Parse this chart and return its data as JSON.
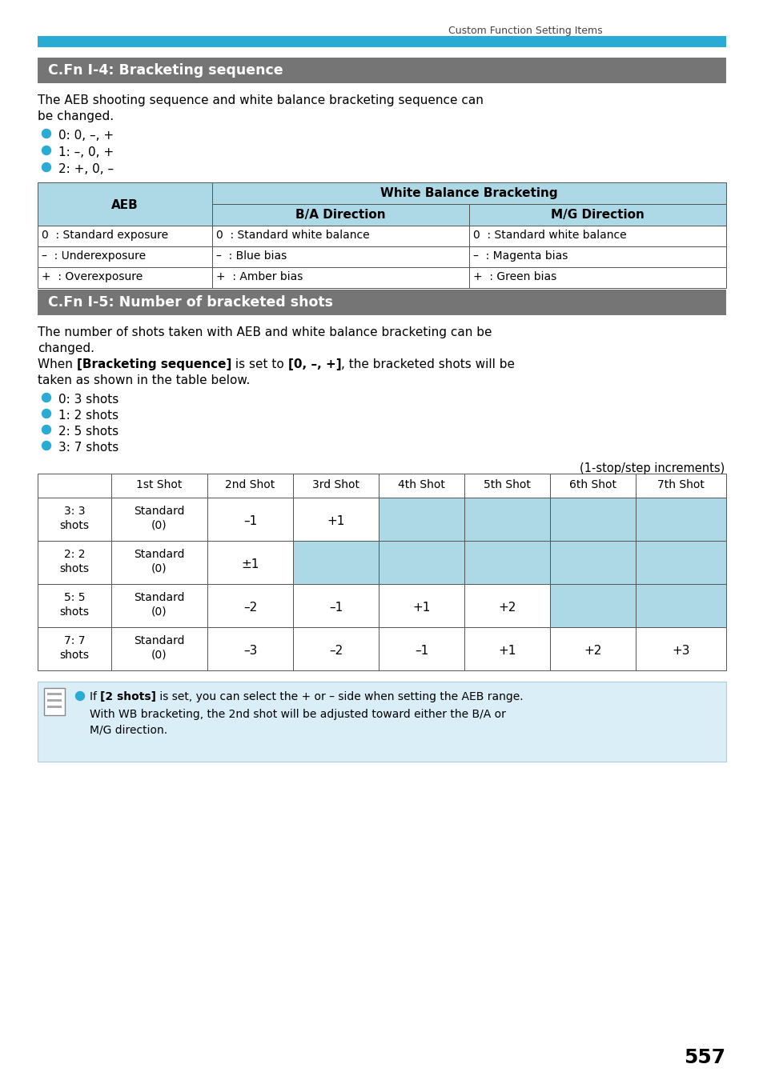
{
  "page_header": "Custom Function Setting Items",
  "cyan_bar_color": "#29ABD4",
  "section1_title": "C.Fn I-4: Bracketing sequence",
  "section1_title_bg": "#757575",
  "section1_title_color": "#FFFFFF",
  "section1_body_line1": "The AEB shooting sequence and white balance bracketing sequence can",
  "section1_body_line2": "be changed.",
  "section1_bullets": [
    "0: 0, –, +",
    "1: –, 0, +",
    "2: +, 0, –"
  ],
  "bullet_color": "#29ABD4",
  "table1_header_bg": "#ADD8E6",
  "table2_header_bg": "#ADD8E6",
  "table2_cell_bg": "#ADD8E6",
  "section2_title": "C.Fn I-5: Number of bracketed shots",
  "section2_title_bg": "#757575",
  "section2_title_color": "#FFFFFF",
  "section2_body_line1": "The number of shots taken with AEB and white balance bracketing can be",
  "section2_body_line2": "changed.",
  "section2_body_line3_normal1": "When ",
  "section2_body_line3_bold1": "[Bracketing sequence]",
  "section2_body_line3_normal2": " is set to ",
  "section2_body_line3_bold2": "[0, –, +]",
  "section2_body_line3_normal3": ", the bracketed shots will be",
  "section2_body_line4": "taken as shown in the table below.",
  "section2_bullets": [
    "0: 3 shots",
    "1: 2 shots",
    "2: 5 shots",
    "3: 7 shots"
  ],
  "increments_note": "(1-stop/step increments)",
  "table2_col_headers": [
    "",
    "1st Shot",
    "2nd Shot",
    "3rd Shot",
    "4th Shot",
    "5th Shot",
    "6th Shot",
    "7th Shot"
  ],
  "table2_rows": [
    [
      "3: 3\nshots",
      "Standard\n(0)",
      "–1",
      "+1",
      "",
      "",
      "",
      ""
    ],
    [
      "2: 2\nshots",
      "Standard\n(0)",
      "±1",
      "",
      "",
      "",
      "",
      ""
    ],
    [
      "5: 5\nshots",
      "Standard\n(0)",
      "–2",
      "–1",
      "+1",
      "+2",
      "",
      ""
    ],
    [
      "7: 7\nshots",
      "Standard\n(0)",
      "–3",
      "–2",
      "–1",
      "+1",
      "+2",
      "+3"
    ]
  ],
  "table2_blue_cells": [
    [
      0,
      [
        4,
        5,
        6,
        7
      ]
    ],
    [
      1,
      [
        3,
        4,
        5,
        6,
        7
      ]
    ],
    [
      2,
      [
        6,
        7
      ]
    ],
    [
      3,
      []
    ]
  ],
  "note_bg": "#DAEEF8",
  "note_bold": "[2 shots]",
  "note_normal": " is set, you can select the + or – side when setting the AEB range.",
  "note_line2": "With WB bracketing, the 2nd shot will be adjusted toward either the B/A or",
  "note_line3": "M/G direction.",
  "page_number": "557",
  "background_color": "#FFFFFF"
}
